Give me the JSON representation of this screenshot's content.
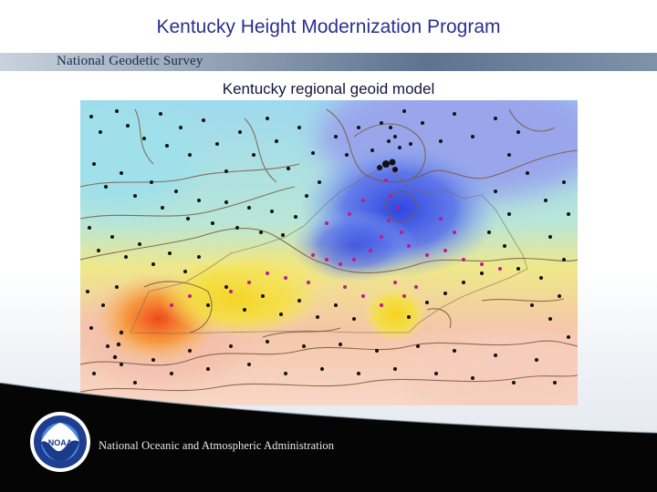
{
  "slide": {
    "title": "Kentucky Height Modernization Program"
  },
  "header_band": {
    "label": "National Geodetic Survey"
  },
  "map": {
    "title": "Kentucky regional geoid model",
    "colors": {
      "low": "#2f45e0",
      "mid": "#8fd3ee",
      "yellow": "#f4e23a",
      "high": "#f0481c",
      "contour": "#7a5a3c",
      "gps_points": "#111111",
      "state_points": "#c0188e"
    }
  },
  "footer": {
    "logo_icon": "noaa-logo-icon",
    "logo_text": "NOAA",
    "agency_name": "National Oceanic and Atmospheric Administration"
  }
}
